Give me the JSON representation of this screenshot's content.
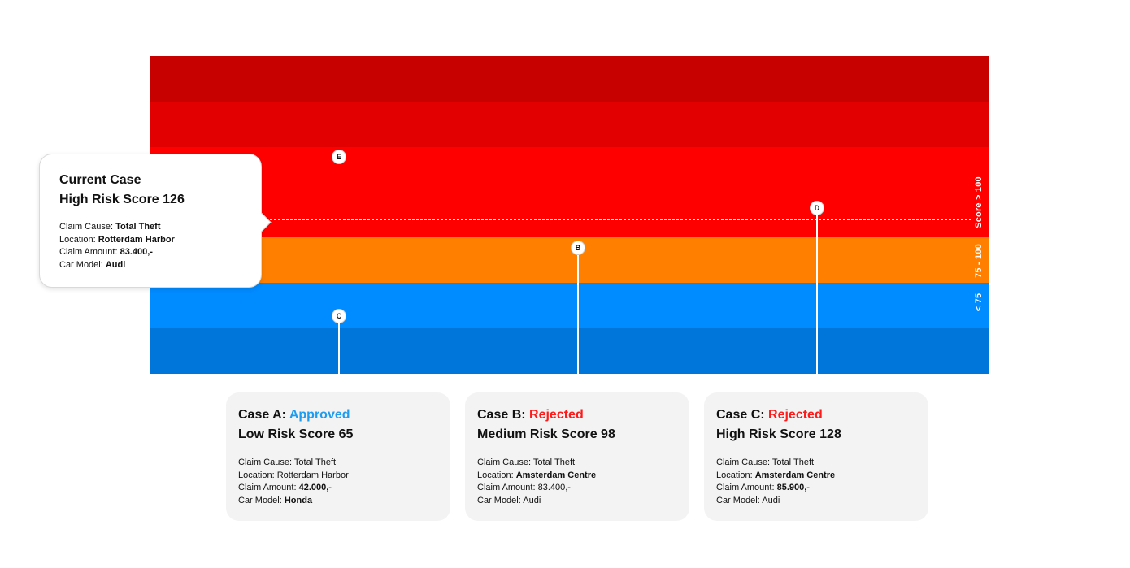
{
  "scale": {
    "high_label": "Score > 100",
    "medium_label": "75 - 100",
    "low_label": "< 75"
  },
  "markers": {
    "e": "E",
    "d": "D",
    "b": "B",
    "c": "C"
  },
  "colors": {
    "high_dark": "#c70000",
    "high_mid": "#e30000",
    "high": "#ff0000",
    "medium": "#ff8000",
    "low": "#008bff",
    "low_dark": "#0076da",
    "approved": "#1f9bf0",
    "rejected": "#ff1a1a"
  },
  "current_case": {
    "title": "Current Case",
    "subtitle": "High Risk Score 126",
    "fields": [
      {
        "label": "Claim Cause: ",
        "value": "Total Theft",
        "bold": true
      },
      {
        "label": "Location: ",
        "value": "Rotterdam Harbor",
        "bold": true
      },
      {
        "label": "Claim Amount: ",
        "value": "83.400,-",
        "bold": true
      },
      {
        "label": "Car Model: ",
        "value": "Audi",
        "bold": true
      }
    ]
  },
  "cases": [
    {
      "prefix": "Case A: ",
      "status": "Approved",
      "subtitle": "Low Risk Score 65",
      "fields": [
        {
          "label": "Claim Cause: ",
          "value": "Total Theft",
          "bold": false
        },
        {
          "label": "Location: ",
          "value": "Rotterdam Harbor",
          "bold": false
        },
        {
          "label": "Claim Amount: ",
          "value": "42.000,-",
          "bold": true
        },
        {
          "label": "Car Model: ",
          "value": "Honda",
          "bold": true
        }
      ]
    },
    {
      "prefix": "Case B: ",
      "status": "Rejected",
      "subtitle": "Medium Risk Score 98",
      "fields": [
        {
          "label": "Claim Cause: ",
          "value": "Total Theft",
          "bold": false
        },
        {
          "label": "Location: ",
          "value": "Amsterdam Centre",
          "bold": true
        },
        {
          "label": "Claim Amount: ",
          "value": "83.400,-",
          "bold": false
        },
        {
          "label": "Car Model: ",
          "value": "Audi",
          "bold": false
        }
      ]
    },
    {
      "prefix": "Case C: ",
      "status": "Rejected",
      "subtitle": "High Risk Score 128",
      "fields": [
        {
          "label": "Claim Cause: ",
          "value": "Total Theft",
          "bold": false
        },
        {
          "label": "Location: ",
          "value": "Amsterdam Centre",
          "bold": true
        },
        {
          "label": "Claim Amount: ",
          "value": "85.900,-",
          "bold": true
        },
        {
          "label": "Car Model: ",
          "value": "Audi",
          "bold": false
        }
      ]
    }
  ]
}
